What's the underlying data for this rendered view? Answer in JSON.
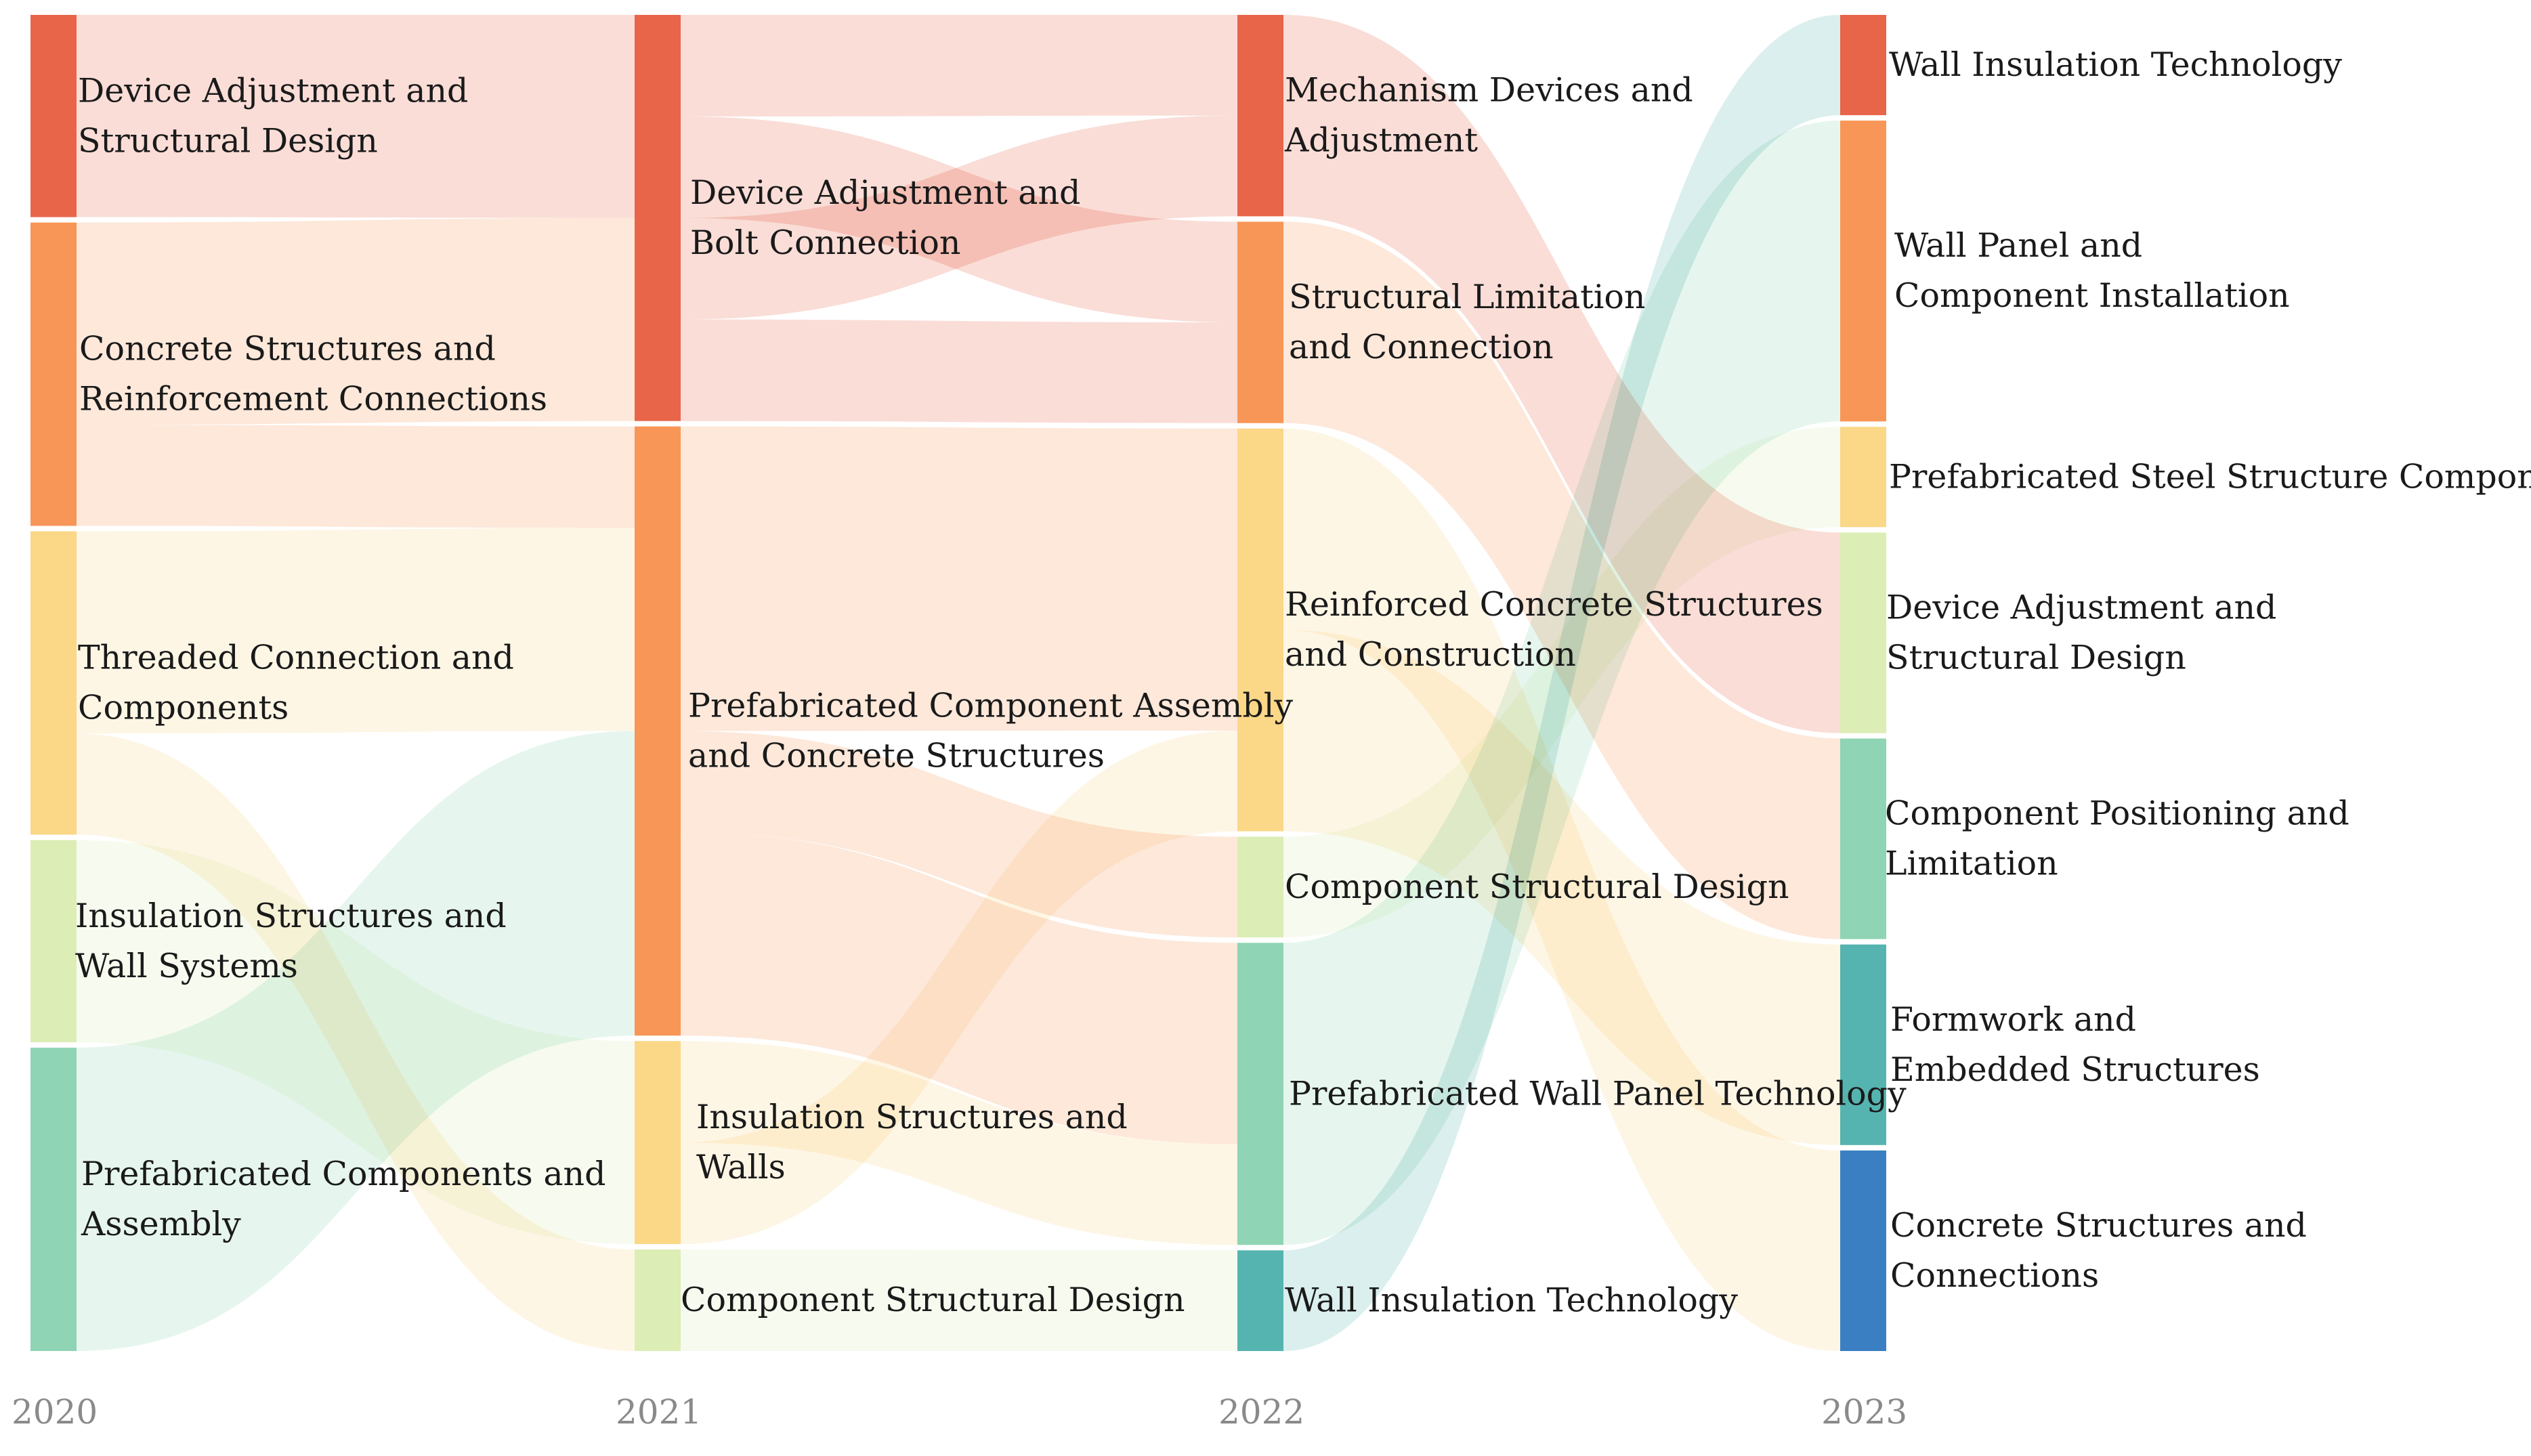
{
  "chart_data": {
    "type": "sankey",
    "title": "",
    "years": [
      "2020",
      "2021",
      "2022",
      "2023"
    ],
    "columns": [
      {
        "year": "2020",
        "nodes": [
          {
            "id": "c0n0",
            "lines": [
              "Device Adjustment and",
              "Structural Design"
            ],
            "value": 4,
            "color": "#e8654a"
          },
          {
            "id": "c0n1",
            "lines": [
              "Concrete Structures and",
              "Reinforcement Connections"
            ],
            "value": 6,
            "color": "#f89657"
          },
          {
            "id": "c0n2",
            "lines": [
              "Threaded Connection and",
              "Components"
            ],
            "value": 6,
            "color": "#fbd788"
          },
          {
            "id": "c0n3",
            "lines": [
              "Insulation Structures and",
              "Wall Systems"
            ],
            "value": 4,
            "color": "#dcedb5"
          },
          {
            "id": "c0n4",
            "lines": [
              "Prefabricated Components and",
              "Assembly"
            ],
            "value": 6,
            "color": "#8fd4b4"
          }
        ]
      },
      {
        "year": "2021",
        "nodes": [
          {
            "id": "c1n0",
            "lines": [
              "Device Adjustment and",
              "Bolt Connection"
            ],
            "value": 8,
            "color": "#e8654a"
          },
          {
            "id": "c1n1",
            "lines": [
              "Prefabricated Component Assembly",
              "and Concrete Structures"
            ],
            "value": 12,
            "color": "#f89657"
          },
          {
            "id": "c1n2",
            "lines": [
              "Insulation Structures and",
              "Walls"
            ],
            "value": 4,
            "color": "#fbd788"
          },
          {
            "id": "c1n3",
            "lines": [
              "Component Structural Design"
            ],
            "value": 2,
            "color": "#dcedb5"
          }
        ]
      },
      {
        "year": "2022",
        "nodes": [
          {
            "id": "c2n0",
            "lines": [
              "Mechanism Devices and",
              "Adjustment"
            ],
            "value": 4,
            "color": "#e8654a"
          },
          {
            "id": "c2n1",
            "lines": [
              "Structural Limitation",
              "and Connection"
            ],
            "value": 4,
            "color": "#f89657"
          },
          {
            "id": "c2n2",
            "lines": [
              "Reinforced Concrete Structures",
              "and Construction"
            ],
            "value": 8,
            "color": "#fbd788"
          },
          {
            "id": "c2n3",
            "lines": [
              "Component Structural Design"
            ],
            "value": 2,
            "color": "#dcedb5"
          },
          {
            "id": "c2n4",
            "lines": [
              "Prefabricated Wall Panel Technology"
            ],
            "value": 6,
            "color": "#8fd4b4"
          },
          {
            "id": "c2n5",
            "lines": [
              "Wall Insulation Technology"
            ],
            "value": 2,
            "color": "#55b4b0"
          }
        ]
      },
      {
        "year": "2023",
        "nodes": [
          {
            "id": "c3n0",
            "lines": [
              "Wall Insulation Technology"
            ],
            "value": 2,
            "color": "#e8654a"
          },
          {
            "id": "c3n1",
            "lines": [
              "Wall Panel and",
              "Component Installation"
            ],
            "value": 6,
            "color": "#f89657"
          },
          {
            "id": "c3n2",
            "lines": [
              "Prefabricated Steel Structure Components"
            ],
            "value": 2,
            "color": "#fbd788"
          },
          {
            "id": "c3n3",
            "lines": [
              "Device Adjustment and",
              "Structural Design"
            ],
            "value": 4,
            "color": "#dcedb5"
          },
          {
            "id": "c3n4",
            "lines": [
              "Component Positioning and",
              "Limitation"
            ],
            "value": 4,
            "color": "#8fd4b4"
          },
          {
            "id": "c3n5",
            "lines": [
              "Formwork and",
              "Embedded Structures"
            ],
            "value": 4,
            "color": "#55b4b0"
          },
          {
            "id": "c3n6",
            "lines": [
              "Concrete Structures and",
              "Connections"
            ],
            "value": 4,
            "color": "#3a7fc1"
          }
        ]
      }
    ],
    "links": [
      {
        "source": "c0n0",
        "target": "c1n0",
        "value": 4
      },
      {
        "source": "c0n1",
        "target": "c1n0",
        "value": 4
      },
      {
        "source": "c0n2",
        "target": "c1n0",
        "value": 0
      },
      {
        "source": "c0n1",
        "target": "c1n1",
        "value": 2
      },
      {
        "source": "c0n2",
        "target": "c1n1",
        "value": 4
      },
      {
        "source": "c0n4",
        "target": "c1n1",
        "value": 6
      },
      {
        "source": "c0n3",
        "target": "c1n2",
        "value": 4
      },
      {
        "source": "c0n2",
        "target": "c1n3",
        "value": 2
      },
      {
        "source": "c1n0",
        "target": "c2n0",
        "value": 2
      },
      {
        "source": "c1n0",
        "target": "c2n1",
        "value": 2
      },
      {
        "source": "c1n0",
        "target": "c2n0",
        "value": 2
      },
      {
        "source": "c1n0",
        "target": "c2n1",
        "value": 2
      },
      {
        "source": "c1n1",
        "target": "c2n2",
        "value": 6
      },
      {
        "source": "c1n1",
        "target": "c2n3",
        "value": 2
      },
      {
        "source": "c1n1",
        "target": "c2n4",
        "value": 4
      },
      {
        "source": "c1n2",
        "target": "c2n4",
        "value": 2
      },
      {
        "source": "c1n2",
        "target": "c2n2",
        "value": 2
      },
      {
        "source": "c1n3",
        "target": "c2n5",
        "value": 2
      },
      {
        "source": "c2n0",
        "target": "c3n3",
        "value": 4
      },
      {
        "source": "c2n1",
        "target": "c3n4",
        "value": 4
      },
      {
        "source": "c2n2",
        "target": "c3n6",
        "value": 4
      },
      {
        "source": "c2n2",
        "target": "c3n5",
        "value": 4
      },
      {
        "source": "c2n3",
        "target": "c3n2",
        "value": 2
      },
      {
        "source": "c2n4",
        "target": "c3n1",
        "value": 6
      },
      {
        "source": "c2n5",
        "target": "c3n0",
        "value": 2
      }
    ]
  }
}
